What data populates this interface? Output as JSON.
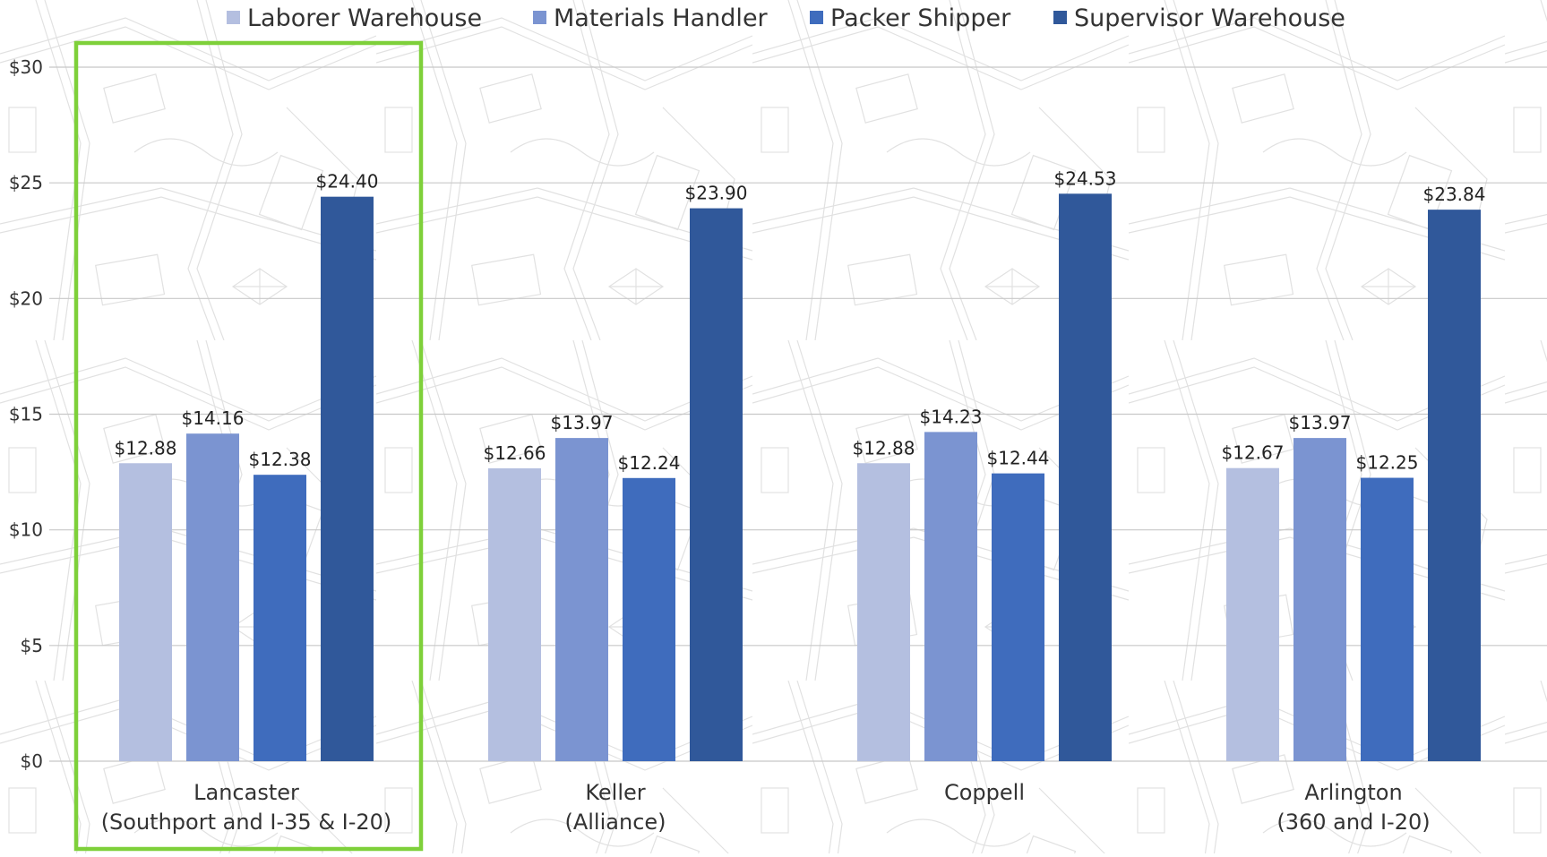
{
  "chart_data": {
    "type": "bar",
    "categories": [
      "Lancaster\n(Southport and I-35 & I-20)",
      "Keller\n(Alliance)",
      "Coppell",
      "Arlington\n(360 and I-20)"
    ],
    "series": [
      {
        "name": "Laborer Warehouse",
        "color": "#b4bfe0",
        "values": [
          12.88,
          12.66,
          12.88,
          12.67
        ],
        "labels": [
          "$12.88",
          "$12.66",
          "$12.88",
          "$12.67"
        ]
      },
      {
        "name": "Materials Handler",
        "color": "#7b94d1",
        "values": [
          14.16,
          13.97,
          14.23,
          13.97
        ],
        "labels": [
          "$14.16",
          "$13.97",
          "$14.23",
          "$13.97"
        ]
      },
      {
        "name": "Packer Shipper",
        "color": "#3f6cbd",
        "values": [
          12.38,
          12.24,
          12.44,
          12.25
        ],
        "labels": [
          "$12.38",
          "$12.24",
          "$12.44",
          "$12.25"
        ]
      },
      {
        "name": "Supervisor Warehouse",
        "color": "#30589a",
        "values": [
          24.4,
          23.9,
          24.53,
          23.84
        ],
        "labels": [
          "$24.40",
          "$23.90",
          "$24.53",
          "$23.84"
        ]
      }
    ],
    "ylim": [
      0,
      30
    ],
    "yticks": [
      0,
      5,
      10,
      15,
      20,
      25,
      30
    ],
    "ytick_labels": [
      "$0",
      "$5",
      "$10",
      "$15",
      "$20",
      "$25",
      "$30"
    ],
    "grid": true,
    "legend": "top",
    "highlight": {
      "category_index": 0,
      "color": "#7ed03a"
    },
    "background": "map-pattern"
  }
}
